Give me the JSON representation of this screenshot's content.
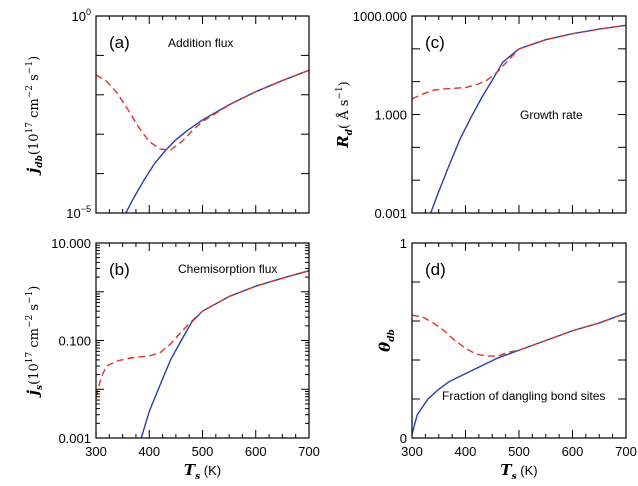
{
  "chart_data": [
    {
      "id": "a",
      "type": "line",
      "panel_label": "(a)",
      "annotation": "Addition flux",
      "ylabel": {
        "var": "j",
        "sub": "db",
        "pre": "(10",
        "sup1": "17",
        "mid": " cm",
        "sup2": "−2",
        "mid2": " s",
        "sup3": "−1",
        "post": ")"
      },
      "xlabel": "",
      "yscale": "log",
      "ylim": [
        1e-05,
        1
      ],
      "xlim": [
        300,
        700
      ],
      "yticks": [
        {
          "v": 1,
          "label": "10",
          "sup": "0"
        },
        {
          "v": 1e-05,
          "label": "10",
          "sup": "−5"
        }
      ],
      "xticks": [
        300,
        400,
        500,
        600,
        700
      ],
      "show_xticklabels": false,
      "series": [
        {
          "style": "solid",
          "color": "#2a3ea8",
          "x": [
            356,
            370,
            390,
            410,
            430,
            450,
            470,
            500,
            550,
            600,
            650,
            700
          ],
          "y": [
            1e-05,
            2.3e-05,
            6.8e-05,
            0.00018,
            0.00038,
            0.00072,
            0.0012,
            0.0023,
            0.0056,
            0.012,
            0.023,
            0.042
          ]
        },
        {
          "style": "dashed",
          "color": "#e0352b",
          "x": [
            300,
            320,
            340,
            360,
            380,
            400,
            420,
            440,
            460,
            480,
            500,
            550,
            600,
            650,
            700
          ],
          "y": [
            0.032,
            0.022,
            0.011,
            0.0042,
            0.0015,
            0.00065,
            0.00042,
            0.0004,
            0.00063,
            0.0012,
            0.0021,
            0.0055,
            0.012,
            0.023,
            0.042
          ]
        }
      ]
    },
    {
      "id": "b",
      "type": "line",
      "panel_label": "(b)",
      "annotation": "Chemisorption flux",
      "ylabel": {
        "var": "j",
        "sub": "s",
        "pre": "(10",
        "sup1": "17",
        "mid": " cm",
        "sup2": "−2",
        "mid2": " s",
        "sup3": "−1",
        "post": ")"
      },
      "xlabel": {
        "var": "T",
        "sub": "s",
        "unit": " (K)"
      },
      "yscale": "log",
      "ylim": [
        0.001,
        10
      ],
      "xlim": [
        300,
        700
      ],
      "yticks": [
        {
          "v": 10,
          "label": "10.000"
        },
        {
          "v": 0.1,
          "label": "0.100"
        },
        {
          "v": 0.001,
          "label": "0.001"
        }
      ],
      "xticks": [
        300,
        400,
        500,
        600,
        700
      ],
      "show_xticklabels": true,
      "series": [
        {
          "style": "solid",
          "color": "#2a3ea8",
          "x": [
            385,
            400,
            420,
            440,
            460,
            480,
            500,
            550,
            600,
            650,
            700
          ],
          "y": [
            0.001,
            0.0035,
            0.012,
            0.04,
            0.1,
            0.24,
            0.4,
            0.8,
            1.3,
            1.9,
            2.7
          ]
        },
        {
          "style": "dashed",
          "color": "#e0352b",
          "x": [
            300,
            310,
            320,
            340,
            360,
            380,
            400,
            420,
            440,
            460,
            480,
            500,
            550,
            600,
            650,
            700
          ],
          "y": [
            0.007,
            0.018,
            0.03,
            0.038,
            0.043,
            0.046,
            0.048,
            0.056,
            0.085,
            0.15,
            0.25,
            0.4,
            0.8,
            1.3,
            1.9,
            2.7
          ]
        }
      ]
    },
    {
      "id": "c",
      "type": "line",
      "panel_label": "(c)",
      "annotation": "Growth rate",
      "ylabel": {
        "var": "R",
        "sub": "d",
        "pre": "( Å s",
        "sup1": "−1",
        "post": ")"
      },
      "xlabel": "",
      "yscale": "log",
      "ylim": [
        0.001,
        1000
      ],
      "xlim": [
        300,
        700
      ],
      "yticks": [
        {
          "v": 1000,
          "label": "1000.000"
        },
        {
          "v": 1,
          "label": "1.000"
        },
        {
          "v": 0.001,
          "label": "0.001"
        }
      ],
      "xticks": [
        300,
        400,
        500,
        600,
        700
      ],
      "show_xticklabels": false,
      "series": [
        {
          "style": "solid",
          "color": "#2a3ea8",
          "x": [
            335,
            350,
            370,
            390,
            410,
            430,
            450,
            470,
            500,
            550,
            600,
            650,
            700
          ],
          "y": [
            0.001,
            0.0045,
            0.03,
            0.18,
            0.8,
            3.2,
            11,
            40,
            100,
            190,
            290,
            400,
            520
          ]
        },
        {
          "style": "dashed",
          "color": "#e0352b",
          "x": [
            300,
            320,
            340,
            360,
            380,
            400,
            420,
            440,
            460,
            480,
            500,
            550,
            600,
            650,
            700
          ],
          "y": [
            3,
            4.2,
            5.5,
            6,
            6.3,
            6.6,
            8,
            11,
            20,
            45,
            100,
            190,
            290,
            400,
            520
          ]
        }
      ]
    },
    {
      "id": "d",
      "type": "line",
      "panel_label": "(d)",
      "annotation": "Fraction of dangling bond sites",
      "ylabel": {
        "var": "θ",
        "sub": "db",
        "pre": "",
        "post": ""
      },
      "xlabel": {
        "var": "T",
        "sub": "s",
        "unit": " (K)"
      },
      "yscale": "linear",
      "ylim": [
        0,
        1
      ],
      "xlim": [
        300,
        700
      ],
      "yticks": [
        {
          "v": 1,
          "label": "1"
        },
        {
          "v": 0,
          "label": "0"
        }
      ],
      "xticks": [
        300,
        400,
        500,
        600,
        700
      ],
      "show_xticklabels": true,
      "series": [
        {
          "style": "solid",
          "color": "#2a3ea8",
          "x": [
            300,
            310,
            330,
            350,
            370,
            400,
            430,
            460,
            500,
            550,
            600,
            650,
            700
          ],
          "y": [
            0.02,
            0.12,
            0.2,
            0.25,
            0.29,
            0.33,
            0.37,
            0.41,
            0.45,
            0.5,
            0.55,
            0.59,
            0.64
          ]
        },
        {
          "style": "dashed",
          "color": "#e0352b",
          "x": [
            300,
            320,
            340,
            360,
            380,
            400,
            420,
            440,
            460,
            480,
            500,
            550,
            600,
            650,
            700
          ],
          "y": [
            0.63,
            0.62,
            0.59,
            0.55,
            0.5,
            0.46,
            0.43,
            0.42,
            0.42,
            0.44,
            0.45,
            0.5,
            0.55,
            0.59,
            0.64
          ]
        }
      ]
    }
  ]
}
